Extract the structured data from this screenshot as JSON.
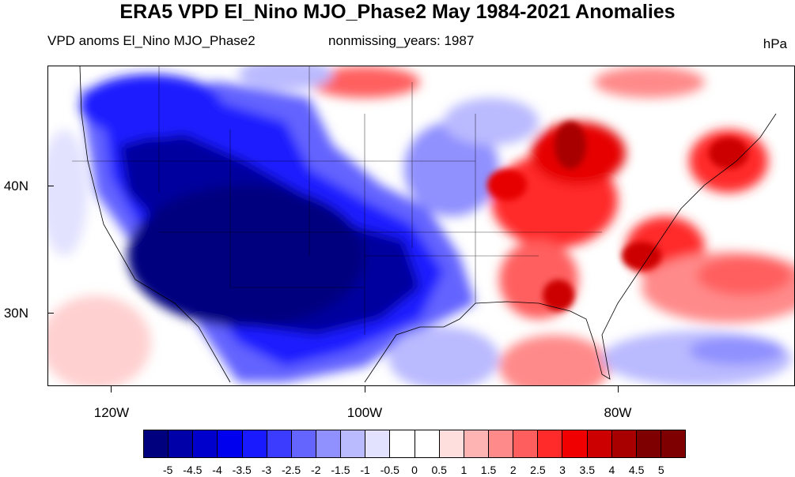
{
  "title": "ERA5 VPD El_Nino MJO_Phase2 May 1984-2021 Anomalies",
  "subtitle_left": "VPD anoms El_Nino MJO_Phase2",
  "subtitle_center": "nonmissing_years: 1987",
  "units": "hPa",
  "lat_labels": [
    "40N",
    "30N"
  ],
  "lon_labels": [
    "120W",
    "100W",
    "80W"
  ],
  "colorbar": {
    "labels": [
      "-5",
      "-4.5",
      "-4",
      "-3.5",
      "-3",
      "-2.5",
      "-2",
      "-1.5",
      "-1",
      "-0.5",
      "0",
      "0.5",
      "1",
      "1.5",
      "2",
      "2.5",
      "3",
      "3.5",
      "4",
      "4.5",
      "5"
    ],
    "colors": [
      "#00007f",
      "#0000a8",
      "#0000cc",
      "#0000ee",
      "#1a1aff",
      "#3c3cff",
      "#6464ff",
      "#9090ff",
      "#babaff",
      "#e2e2ff",
      "#ffffff",
      "#ffffff",
      "#ffdede",
      "#ffb4b4",
      "#ff8a8a",
      "#ff5e5e",
      "#ff2a2a",
      "#f00000",
      "#cc0000",
      "#a80000",
      "#7f0000"
    ]
  },
  "colors": {
    "strong_negative": "#00009e",
    "strong_positive": "#cc0000"
  }
}
